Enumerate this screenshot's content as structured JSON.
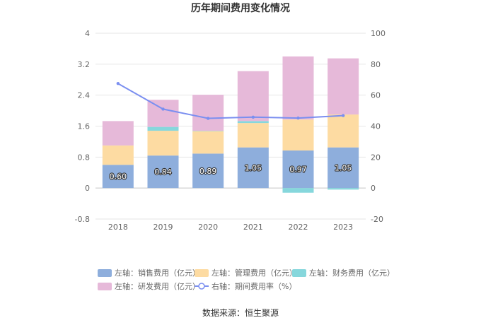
{
  "chart_data": {
    "type": "bar",
    "title": "历年期间费用变化情况",
    "categories": [
      "2018",
      "2019",
      "2020",
      "2021",
      "2022",
      "2023"
    ],
    "series": [
      {
        "name": "左轴：销售费用（亿元）",
        "axis": "left",
        "stack": "total",
        "color": "#8eaedc",
        "values": [
          0.6,
          0.84,
          0.89,
          1.05,
          0.97,
          1.05
        ],
        "labels": [
          "0.60",
          "0.84",
          "0.89",
          "1.05",
          "0.97",
          "1.05"
        ]
      },
      {
        "name": "左轴：管理费用（亿元）",
        "axis": "left",
        "stack": "total",
        "color": "#fddba2",
        "values": [
          0.5,
          0.64,
          0.58,
          0.63,
          0.8,
          0.85
        ]
      },
      {
        "name": "左轴：财务费用（亿元）",
        "axis": "left",
        "stack": "total",
        "color": "#86d7dc",
        "values": [
          0.0,
          0.1,
          0.01,
          0.05,
          -0.12,
          -0.04
        ]
      },
      {
        "name": "左轴：研发费用（亿元）",
        "axis": "left",
        "stack": "total",
        "color": "#e6b9d9",
        "values": [
          0.63,
          0.7,
          0.93,
          1.29,
          1.63,
          1.45
        ]
      },
      {
        "name": "右轴：期间费用率（%）",
        "axis": "right",
        "type": "line",
        "color": "#7b8ff0",
        "values": [
          67.5,
          51.0,
          45.0,
          45.8,
          45.2,
          46.8
        ]
      }
    ],
    "left_axis": {
      "min": -0.8,
      "max": 4,
      "ticks": [
        "-0.8",
        "0",
        "0.8",
        "1.6",
        "2.4",
        "3.2",
        "4"
      ]
    },
    "right_axis": {
      "min": -20,
      "max": 100,
      "ticks": [
        "-20",
        "0",
        "20",
        "40",
        "60",
        "80",
        "100"
      ]
    },
    "grid": true,
    "legend_position": "bottom"
  },
  "source": "数据来源：恒生聚源"
}
